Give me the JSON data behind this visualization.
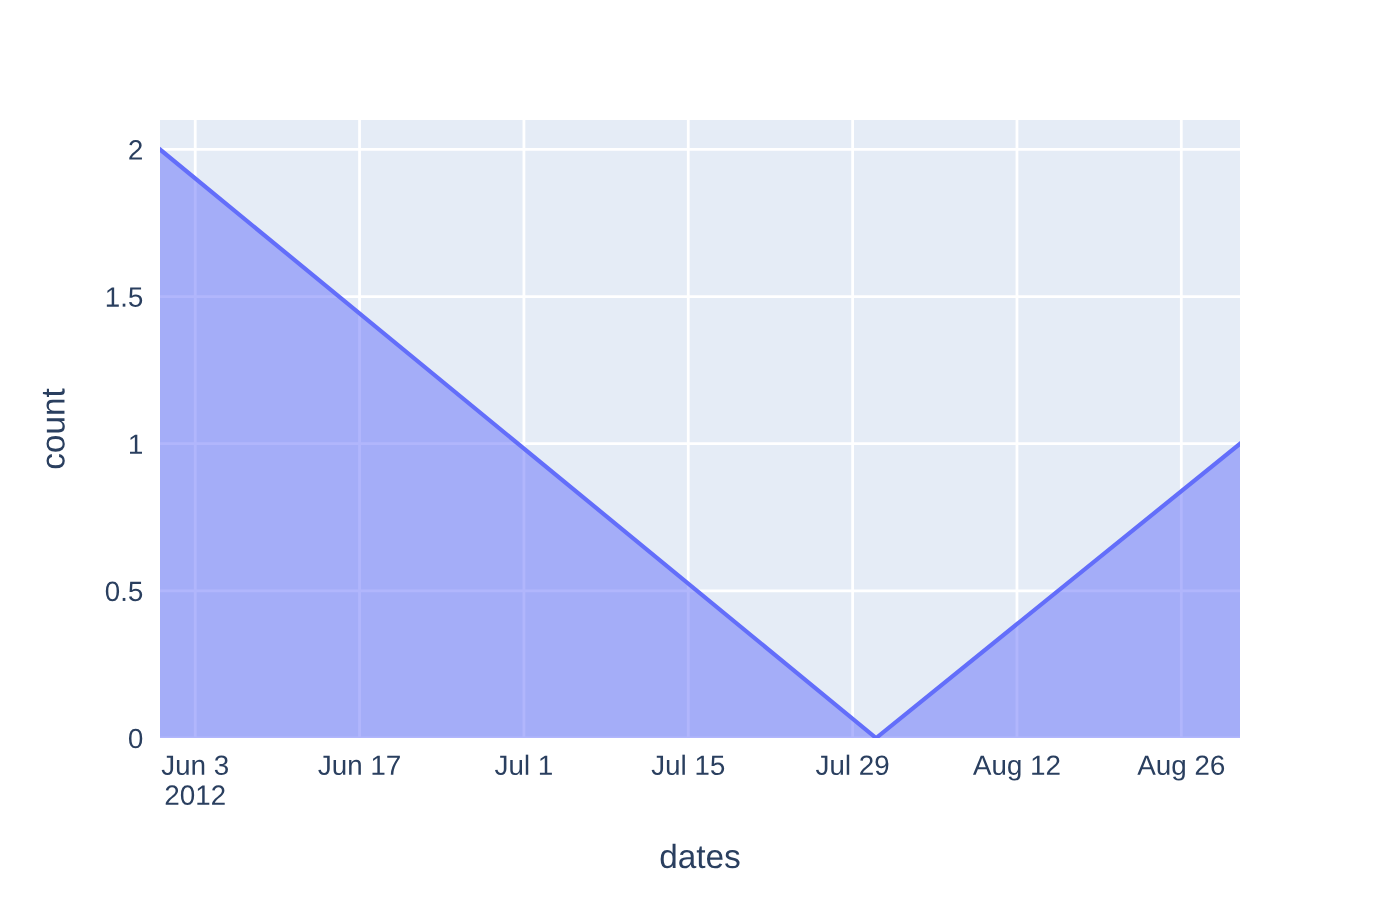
{
  "chart_data": {
    "type": "area",
    "xlabel": "dates",
    "ylabel": "count",
    "x": [
      "2012-05-31",
      "2012-07-31",
      "2012-08-31"
    ],
    "series": [
      {
        "color": "#636efa",
        "values": [
          2,
          0,
          1
        ]
      }
    ],
    "xlim": [
      "2012-05-31",
      "2012-08-31"
    ],
    "xticks": [
      {
        "value": "2012-06-03",
        "label": "Jun 3\n2012"
      },
      {
        "value": "2012-06-17",
        "label": "Jun 17"
      },
      {
        "value": "2012-07-01",
        "label": "Jul 1"
      },
      {
        "value": "2012-07-15",
        "label": "Jul 15"
      },
      {
        "value": "2012-07-29",
        "label": "Jul 29"
      },
      {
        "value": "2012-08-12",
        "label": "Aug 12"
      },
      {
        "value": "2012-08-26",
        "label": "Aug 26"
      }
    ],
    "ylim": [
      0,
      2.1
    ],
    "yticks": [
      0,
      0.5,
      1,
      1.5,
      2
    ],
    "grid": true,
    "legend": false
  }
}
